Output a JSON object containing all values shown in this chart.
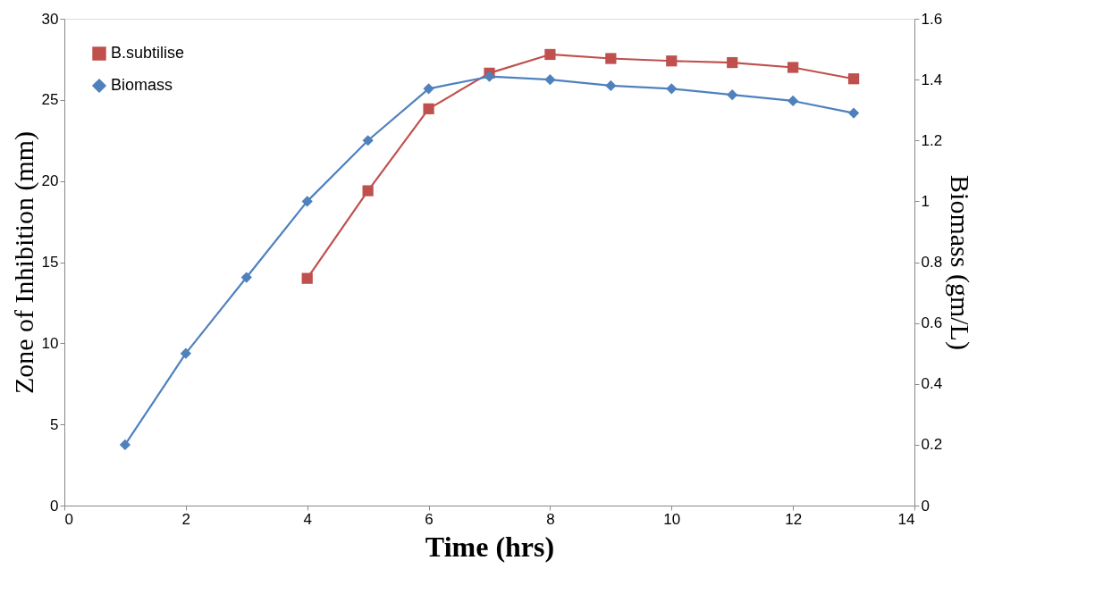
{
  "chart_data": {
    "type": "line",
    "xlabel": "Time (hrs)",
    "ylabel": "Zone of Inhibition (mm)",
    "y2label": "Biomass (gm/L)",
    "x": [
      1,
      2,
      3,
      4,
      5,
      6,
      7,
      8,
      9,
      10,
      11,
      12,
      13
    ],
    "series": [
      {
        "name": "B.subtilise",
        "color": "#c0504d",
        "marker": "square",
        "values": [
          null,
          null,
          null,
          14.0,
          19.4,
          24.45,
          26.65,
          27.8,
          27.55,
          27.4,
          27.3,
          27.0,
          26.3
        ]
      },
      {
        "name": "Biomass",
        "color": "#4f81bd",
        "marker": "diamond",
        "axis": "y2",
        "values": [
          0.2,
          0.5,
          0.75,
          1.0,
          1.2,
          1.37,
          1.41,
          1.4,
          1.38,
          1.37,
          1.35,
          1.33,
          1.29
        ]
      }
    ],
    "xlim": [
      0,
      14
    ],
    "xticks": [
      0,
      2,
      4,
      6,
      8,
      10,
      12,
      14
    ],
    "ylim": [
      0,
      30
    ],
    "yticks": [
      0,
      5,
      10,
      15,
      20,
      25,
      30
    ],
    "y2lim": [
      0,
      1.6
    ],
    "y2ticks": [
      0,
      0.2,
      0.4,
      0.6,
      0.8,
      1,
      1.2,
      1.4,
      1.6
    ],
    "legend": "top left",
    "grid": false
  }
}
